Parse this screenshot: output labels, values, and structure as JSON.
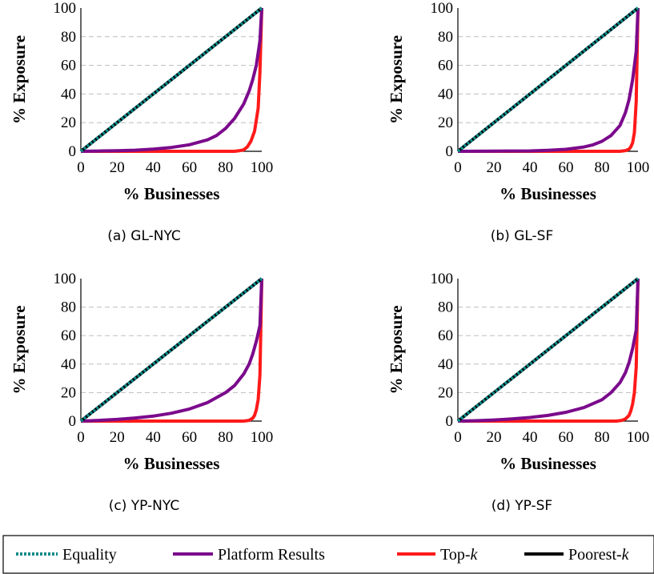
{
  "chart_data": [
    {
      "type": "line",
      "caption": "(a) GL-NYC",
      "xlabel": "% Businesses",
      "ylabel": "% Exposure",
      "xlim": [
        0,
        100
      ],
      "ylim": [
        0,
        100
      ],
      "xticks": [
        "0",
        "20",
        "40",
        "60",
        "80",
        "100"
      ],
      "yticks": [
        "0",
        "20",
        "40",
        "60",
        "80",
        "100"
      ],
      "grid": "horizontal dashed",
      "series": [
        {
          "name": "Equality",
          "x": [
            0,
            100
          ],
          "y": [
            0,
            100
          ]
        },
        {
          "name": "Platform Results",
          "x": [
            0,
            10,
            20,
            30,
            40,
            50,
            60,
            70,
            75,
            80,
            85,
            90,
            93,
            95,
            97,
            99,
            100
          ],
          "y": [
            0,
            0.2,
            0.4,
            0.8,
            1.5,
            2.7,
            4.6,
            8,
            11,
            16,
            23,
            33,
            42,
            50,
            60,
            77,
            100
          ]
        },
        {
          "name": "Top-k",
          "x": [
            0,
            85,
            88,
            90,
            92,
            94,
            96,
            98,
            99,
            100
          ],
          "y": [
            0,
            0,
            0.5,
            1,
            3,
            7,
            14,
            30,
            55,
            100
          ]
        },
        {
          "name": "Poorest-k",
          "x": [
            0,
            100
          ],
          "y": [
            0,
            100
          ]
        }
      ]
    },
    {
      "type": "line",
      "caption": "(b) GL-SF",
      "xlabel": "% Businesses",
      "ylabel": "% Exposure",
      "xlim": [
        0,
        100
      ],
      "ylim": [
        0,
        100
      ],
      "xticks": [
        "0",
        "20",
        "40",
        "60",
        "80",
        "100"
      ],
      "yticks": [
        "0",
        "20",
        "40",
        "60",
        "80",
        "100"
      ],
      "grid": "horizontal dashed",
      "series": [
        {
          "name": "Equality",
          "x": [
            0,
            100
          ],
          "y": [
            0,
            100
          ]
        },
        {
          "name": "Platform Results",
          "x": [
            0,
            20,
            40,
            50,
            60,
            70,
            75,
            80,
            85,
            90,
            93,
            95,
            97,
            99,
            100
          ],
          "y": [
            0,
            0.1,
            0.3,
            0.7,
            1.4,
            3,
            4.5,
            7,
            11,
            18,
            27,
            36,
            50,
            70,
            100
          ]
        },
        {
          "name": "Top-k",
          "x": [
            0,
            90,
            93,
            95,
            96,
            97,
            98,
            99,
            100
          ],
          "y": [
            0,
            0,
            0.5,
            1.5,
            3,
            6,
            13,
            35,
            100
          ]
        },
        {
          "name": "Poorest-k",
          "x": [
            0,
            100
          ],
          "y": [
            0,
            100
          ]
        }
      ]
    },
    {
      "type": "line",
      "caption": "(c) YP-NYC",
      "xlabel": "% Businesses",
      "ylabel": "% Exposure",
      "xlim": [
        0,
        100
      ],
      "ylim": [
        0,
        100
      ],
      "xticks": [
        "0",
        "20",
        "40",
        "60",
        "80",
        "100"
      ],
      "yticks": [
        "0",
        "20",
        "40",
        "60",
        "80",
        "100"
      ],
      "grid": "horizontal dashed",
      "series": [
        {
          "name": "Equality",
          "x": [
            0,
            100
          ],
          "y": [
            0,
            100
          ]
        },
        {
          "name": "Platform Results",
          "x": [
            0,
            10,
            20,
            30,
            40,
            50,
            60,
            70,
            80,
            85,
            90,
            93,
            95,
            97,
            99,
            100
          ],
          "y": [
            0,
            0.5,
            1.2,
            2.2,
            3.5,
            5.5,
            8.5,
            13,
            20,
            25,
            33,
            40,
            47,
            56,
            67,
            100
          ]
        },
        {
          "name": "Top-k",
          "x": [
            0,
            90,
            93,
            95,
            96,
            97,
            98,
            99,
            100
          ],
          "y": [
            0,
            0,
            0.5,
            2,
            4,
            8,
            15,
            32,
            100
          ]
        },
        {
          "name": "Poorest-k",
          "x": [
            0,
            100
          ],
          "y": [
            0,
            100
          ]
        }
      ]
    },
    {
      "type": "line",
      "caption": "(d) YP-SF",
      "xlabel": "% Businesses",
      "ylabel": "% Exposure",
      "xlim": [
        0,
        100
      ],
      "ylim": [
        0,
        100
      ],
      "xticks": [
        "0",
        "20",
        "40",
        "60",
        "80",
        "100"
      ],
      "yticks": [
        "0",
        "20",
        "40",
        "60",
        "80",
        "100"
      ],
      "grid": "horizontal dashed",
      "series": [
        {
          "name": "Equality",
          "x": [
            0,
            100
          ],
          "y": [
            0,
            100
          ]
        },
        {
          "name": "Platform Results",
          "x": [
            0,
            10,
            20,
            30,
            40,
            50,
            60,
            70,
            80,
            85,
            90,
            93,
            95,
            97,
            99,
            100
          ],
          "y": [
            0,
            0.3,
            0.8,
            1.5,
            2.5,
            4,
            6.2,
            9.5,
            15,
            20,
            27,
            34,
            41,
            51,
            64,
            100
          ]
        },
        {
          "name": "Top-k",
          "x": [
            0,
            88,
            91,
            93,
            95,
            96,
            97,
            98,
            99,
            100
          ],
          "y": [
            0,
            0,
            0.5,
            1.5,
            4,
            7,
            12,
            20,
            38,
            100
          ]
        },
        {
          "name": "Poorest-k",
          "x": [
            0,
            100
          ],
          "y": [
            0,
            100
          ]
        }
      ]
    }
  ],
  "legend": {
    "placement": "bottom",
    "items": [
      {
        "label": "Equality",
        "color": "#0e8a8a",
        "style": "dotted"
      },
      {
        "label": "Platform Results",
        "color": "#7b0a8c",
        "style": "solid"
      },
      {
        "label": "Top-",
        "label_italic": "k",
        "color": "#ff1a1a",
        "style": "solid"
      },
      {
        "label": "Poorest-",
        "label_italic": "k",
        "color": "#000000",
        "style": "solid"
      }
    ]
  },
  "colors": {
    "equality": "#0e8a8a",
    "platform": "#7b0a8c",
    "topk": "#ff1a1a",
    "poorestk": "#000000",
    "grid": "#bdbdbd"
  }
}
